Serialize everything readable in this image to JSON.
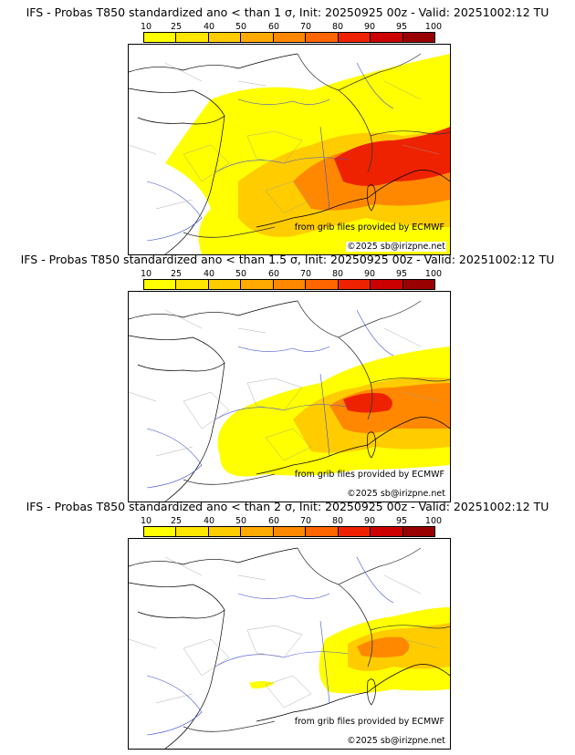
{
  "colorbar": {
    "ticks": [
      "10",
      "25",
      "40",
      "50",
      "60",
      "70",
      "80",
      "90",
      "95",
      "100"
    ],
    "colors": [
      "#ffff00",
      "#ffe600",
      "#ffcc00",
      "#ffaa00",
      "#ff8800",
      "#ff6600",
      "#ee2200",
      "#cc0000",
      "#990000",
      "#660000"
    ]
  },
  "panels": [
    {
      "title": "IFS - Probas T850  standardized ano < than 1 σ, Init: 20250925 00z - Valid: 20251002:12 TU"
    },
    {
      "title": "IFS - Probas T850  standardized ano < than 1.5 σ, Init: 20250925 00z - Valid: 20251002:12 TU"
    },
    {
      "title": "IFS - Probas T850  standardized ano < than 2 σ, Init: 20250925 00z - Valid: 20251002:12 TU"
    }
  ],
  "credits": {
    "source": "from grib files provided by ECMWF",
    "copyright": "©2025 sb@irizpne.net"
  }
}
